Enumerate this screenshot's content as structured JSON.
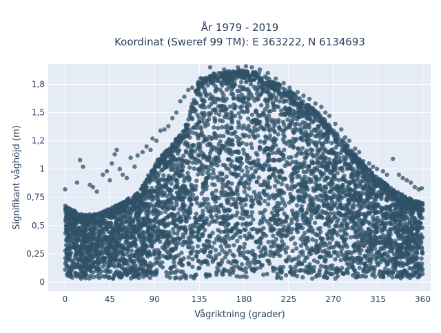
{
  "chart_data": {
    "type": "scatter",
    "title_lines": [
      "År 1979 - 2019",
      "Koordinat (Sweref 99 TM): E 363222, N 6134693"
    ],
    "xlabel": "Vågriktning (grader)",
    "ylabel": "Signifikant våghöjd (m)",
    "xlim": [
      -17,
      368
    ],
    "ylim": [
      -0.08,
      1.93
    ],
    "x_ticks": [
      0,
      45,
      90,
      135,
      180,
      225,
      270,
      315,
      360
    ],
    "x_tick_labels": [
      "0",
      "45",
      "90",
      "135",
      "180",
      "225",
      "270",
      "315",
      "360"
    ],
    "y_ticks": [
      0,
      0.25,
      0.5,
      0.75,
      1,
      1.25,
      1.5,
      1.75
    ],
    "y_tick_labels": [
      "0",
      "0,25",
      "0,5",
      "0,75",
      "1",
      "1,2",
      "1,5",
      "1,8"
    ],
    "grid": true,
    "background_color": "#e5ecf6",
    "grid_color": "#ffffff",
    "marker_color": "#2f5168",
    "marker_opacity": 0.75,
    "envelope": {
      "x": [
        0,
        15,
        30,
        45,
        60,
        75,
        90,
        105,
        120,
        135,
        150,
        165,
        180,
        195,
        210,
        225,
        240,
        255,
        270,
        285,
        300,
        315,
        330,
        345,
        360
      ],
      "lower": [
        0.04,
        0.03,
        0.03,
        0.03,
        0.03,
        0.03,
        0.03,
        0.03,
        0.03,
        0.03,
        0.03,
        0.03,
        0.03,
        0.03,
        0.03,
        0.03,
        0.03,
        0.03,
        0.03,
        0.03,
        0.03,
        0.03,
        0.03,
        0.03,
        0.04
      ],
      "upper": [
        0.68,
        0.6,
        0.6,
        0.65,
        0.72,
        0.8,
        1.05,
        1.2,
        1.35,
        1.8,
        1.85,
        1.87,
        1.88,
        1.85,
        1.78,
        1.7,
        1.6,
        1.5,
        1.35,
        1.2,
        1.05,
        0.92,
        0.82,
        0.75,
        0.7
      ]
    },
    "outliers": [
      [
        0,
        0.82
      ],
      [
        12,
        0.88
      ],
      [
        15,
        1.08
      ],
      [
        18,
        1.02
      ],
      [
        25,
        0.86
      ],
      [
        28,
        0.84
      ],
      [
        32,
        0.8
      ],
      [
        38,
        0.95
      ],
      [
        42,
        0.98
      ],
      [
        45,
        0.9
      ],
      [
        47,
        1.05
      ],
      [
        50,
        1.13
      ],
      [
        52,
        1.17
      ],
      [
        55,
        1.0
      ],
      [
        58,
        0.95
      ],
      [
        62,
        0.92
      ],
      [
        66,
        1.1
      ],
      [
        70,
        1.02
      ],
      [
        73,
        1.12
      ],
      [
        78,
        1.15
      ],
      [
        82,
        1.2
      ],
      [
        86,
        1.17
      ],
      [
        88,
        1.27
      ],
      [
        92,
        1.25
      ],
      [
        96,
        1.34
      ],
      [
        100,
        1.35
      ],
      [
        104,
        1.38
      ],
      [
        108,
        1.45
      ],
      [
        112,
        1.5
      ],
      [
        116,
        1.6
      ],
      [
        120,
        1.64
      ],
      [
        124,
        1.7
      ],
      [
        128,
        1.72
      ],
      [
        146,
        1.9
      ],
      [
        160,
        1.88
      ],
      [
        174,
        1.9
      ],
      [
        182,
        1.91
      ],
      [
        188,
        1.9
      ],
      [
        196,
        1.88
      ],
      [
        204,
        1.85
      ],
      [
        212,
        1.8
      ],
      [
        220,
        1.76
      ],
      [
        226,
        1.72
      ],
      [
        234,
        1.68
      ],
      [
        240,
        1.65
      ],
      [
        246,
        1.62
      ],
      [
        252,
        1.58
      ],
      [
        258,
        1.55
      ],
      [
        262,
        1.5
      ],
      [
        266,
        1.47
      ],
      [
        272,
        1.4
      ],
      [
        278,
        1.35
      ],
      [
        282,
        1.28
      ],
      [
        286,
        1.25
      ],
      [
        292,
        1.18
      ],
      [
        296,
        1.15
      ],
      [
        300,
        1.07
      ],
      [
        306,
        1.05
      ],
      [
        310,
        1.02
      ],
      [
        314,
        1.0
      ],
      [
        320,
        0.98
      ],
      [
        324,
        0.95
      ],
      [
        330,
        1.09
      ],
      [
        336,
        0.95
      ],
      [
        340,
        0.92
      ],
      [
        344,
        0.9
      ],
      [
        348,
        0.88
      ],
      [
        352,
        0.84
      ],
      [
        356,
        0.82
      ],
      [
        359,
        0.83
      ]
    ]
  }
}
